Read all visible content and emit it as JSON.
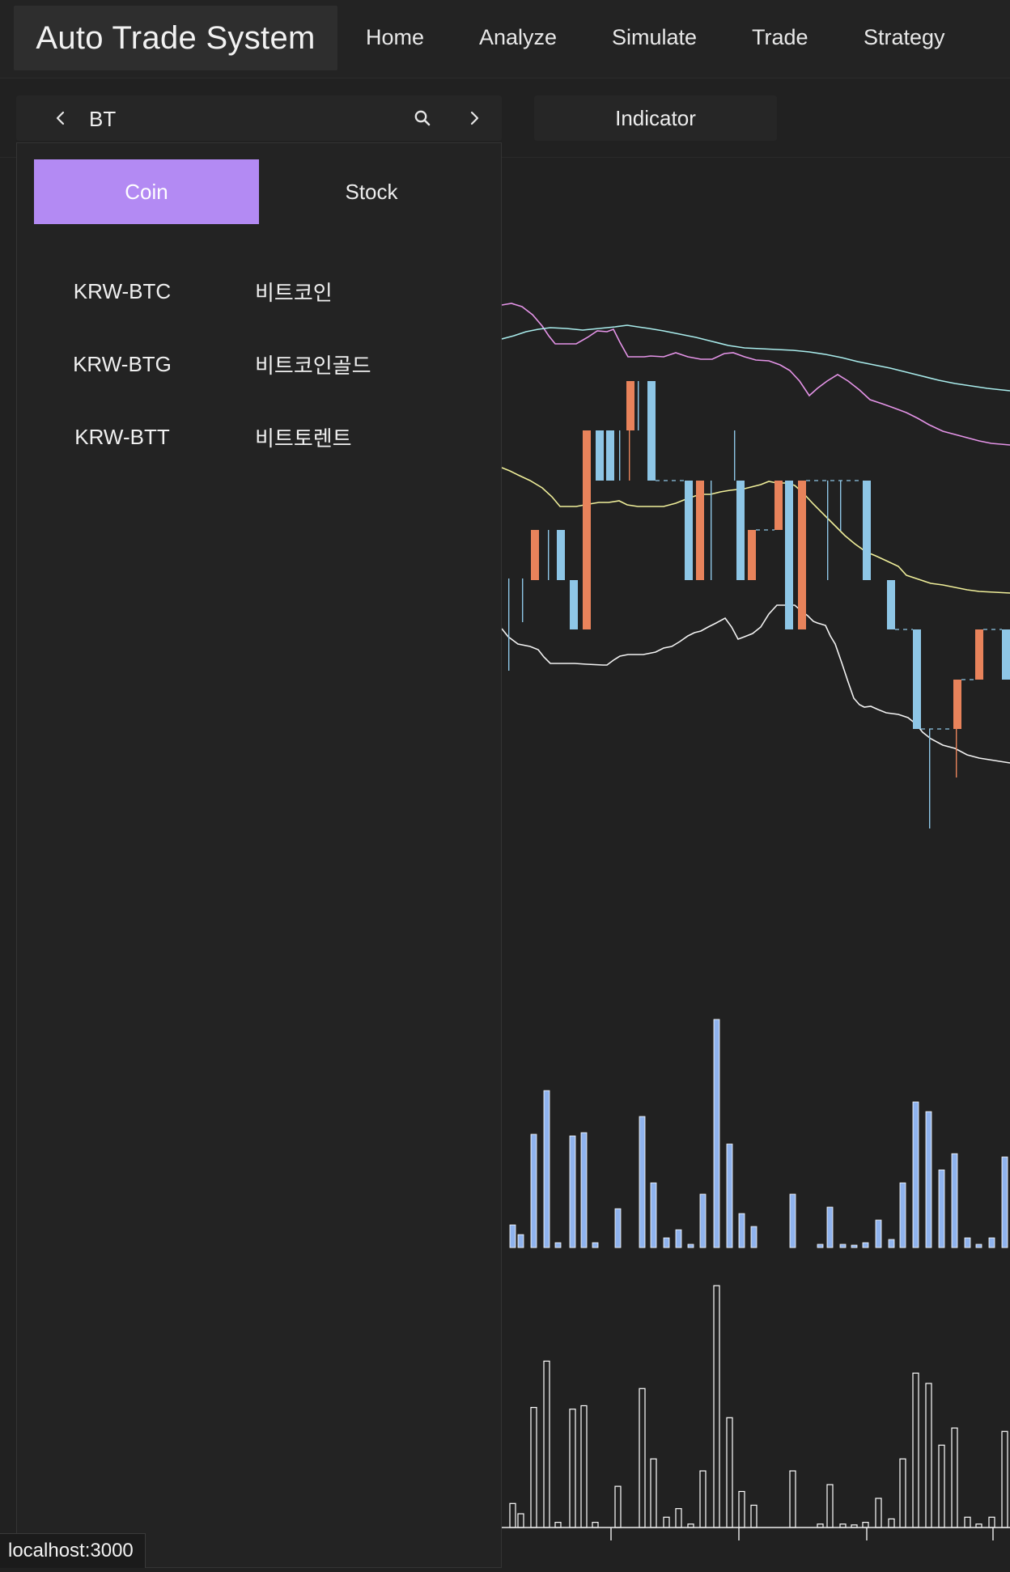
{
  "app": {
    "title": "Auto Trade System"
  },
  "nav": {
    "home": "Home",
    "analyze": "Analyze",
    "simulate": "Simulate",
    "trade": "Trade",
    "strategy": "Strategy"
  },
  "toolbar": {
    "search_value": "BT",
    "indicator_label": "Indicator",
    "prev_icon": "chevron-left-icon",
    "next_icon": "chevron-right-icon",
    "search_icon": "search-icon"
  },
  "dropdown": {
    "tabs": [
      {
        "label": "Coin",
        "active": true
      },
      {
        "label": "Stock",
        "active": false
      }
    ],
    "results": [
      {
        "code": "KRW-BTC",
        "name": "비트코인"
      },
      {
        "code": "KRW-BTG",
        "name": "비트코인골드"
      },
      {
        "code": "KRW-BTT",
        "name": "비트토렌트"
      }
    ]
  },
  "status_bar": {
    "url": "localhost:3000"
  },
  "colors": {
    "accent": "#b38af3",
    "candle_up": "#e8835b",
    "candle_down": "#8ec6e6",
    "volume_bar": "#8fb3ee",
    "line_white": "#f3f3f3",
    "line_yellow": "#f0ef9a",
    "line_cyan": "#a9ecec",
    "line_pink": "#e594e8"
  }
}
